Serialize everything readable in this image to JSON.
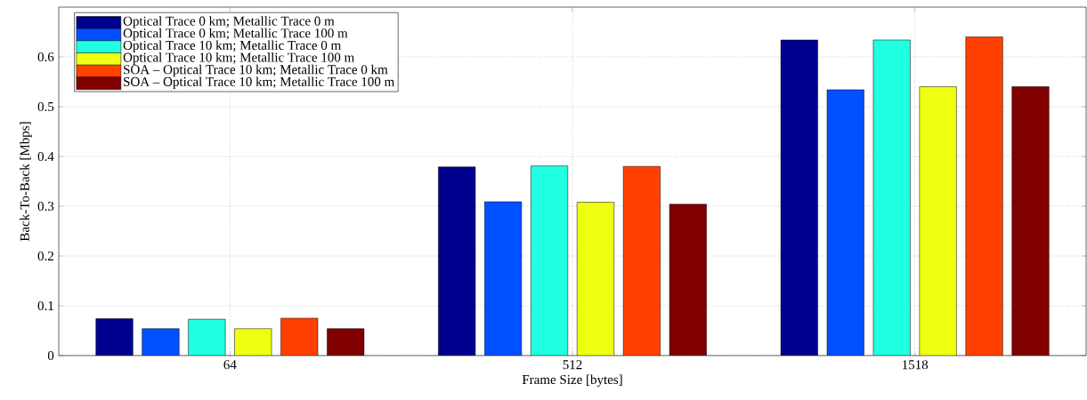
{
  "chart_data": {
    "type": "bar",
    "xlabel": "Frame Size [bytes]",
    "ylabel": "Back-To-Back [Mbps]",
    "categories": [
      "64",
      "512",
      "1518"
    ],
    "series": [
      {
        "name": "Optical Trace 0 km; Metallic Trace 0 m",
        "color": "#00008f",
        "values": [
          0.074,
          0.379,
          0.634
        ]
      },
      {
        "name": "Optical Trace 0 km; Metallic Trace 100 m",
        "color": "#0050ff",
        "values": [
          0.054,
          0.309,
          0.534
        ]
      },
      {
        "name": "Optical Trace 10 km; Metallic Trace 0 m",
        "color": "#20ffdf",
        "values": [
          0.073,
          0.381,
          0.634
        ]
      },
      {
        "name": "Optical Trace 10 km; Metallic Trace 100 m",
        "color": "#efff10",
        "values": [
          0.054,
          0.308,
          0.54
        ]
      },
      {
        "name": "SOA – Optical Trace 10 km; Metallic Trace 0 km",
        "color": "#ff4000",
        "values": [
          0.075,
          0.38,
          0.64
        ]
      },
      {
        "name": "SOA – Optical Trace 10 km; Metallic Trace 100 m",
        "color": "#800000",
        "values": [
          0.054,
          0.304,
          0.54
        ]
      }
    ],
    "ylim": [
      0,
      0.7
    ],
    "yticks": [
      0,
      0.1,
      0.2,
      0.3,
      0.4,
      0.5,
      0.6
    ],
    "grid": true,
    "legend": "top left"
  }
}
